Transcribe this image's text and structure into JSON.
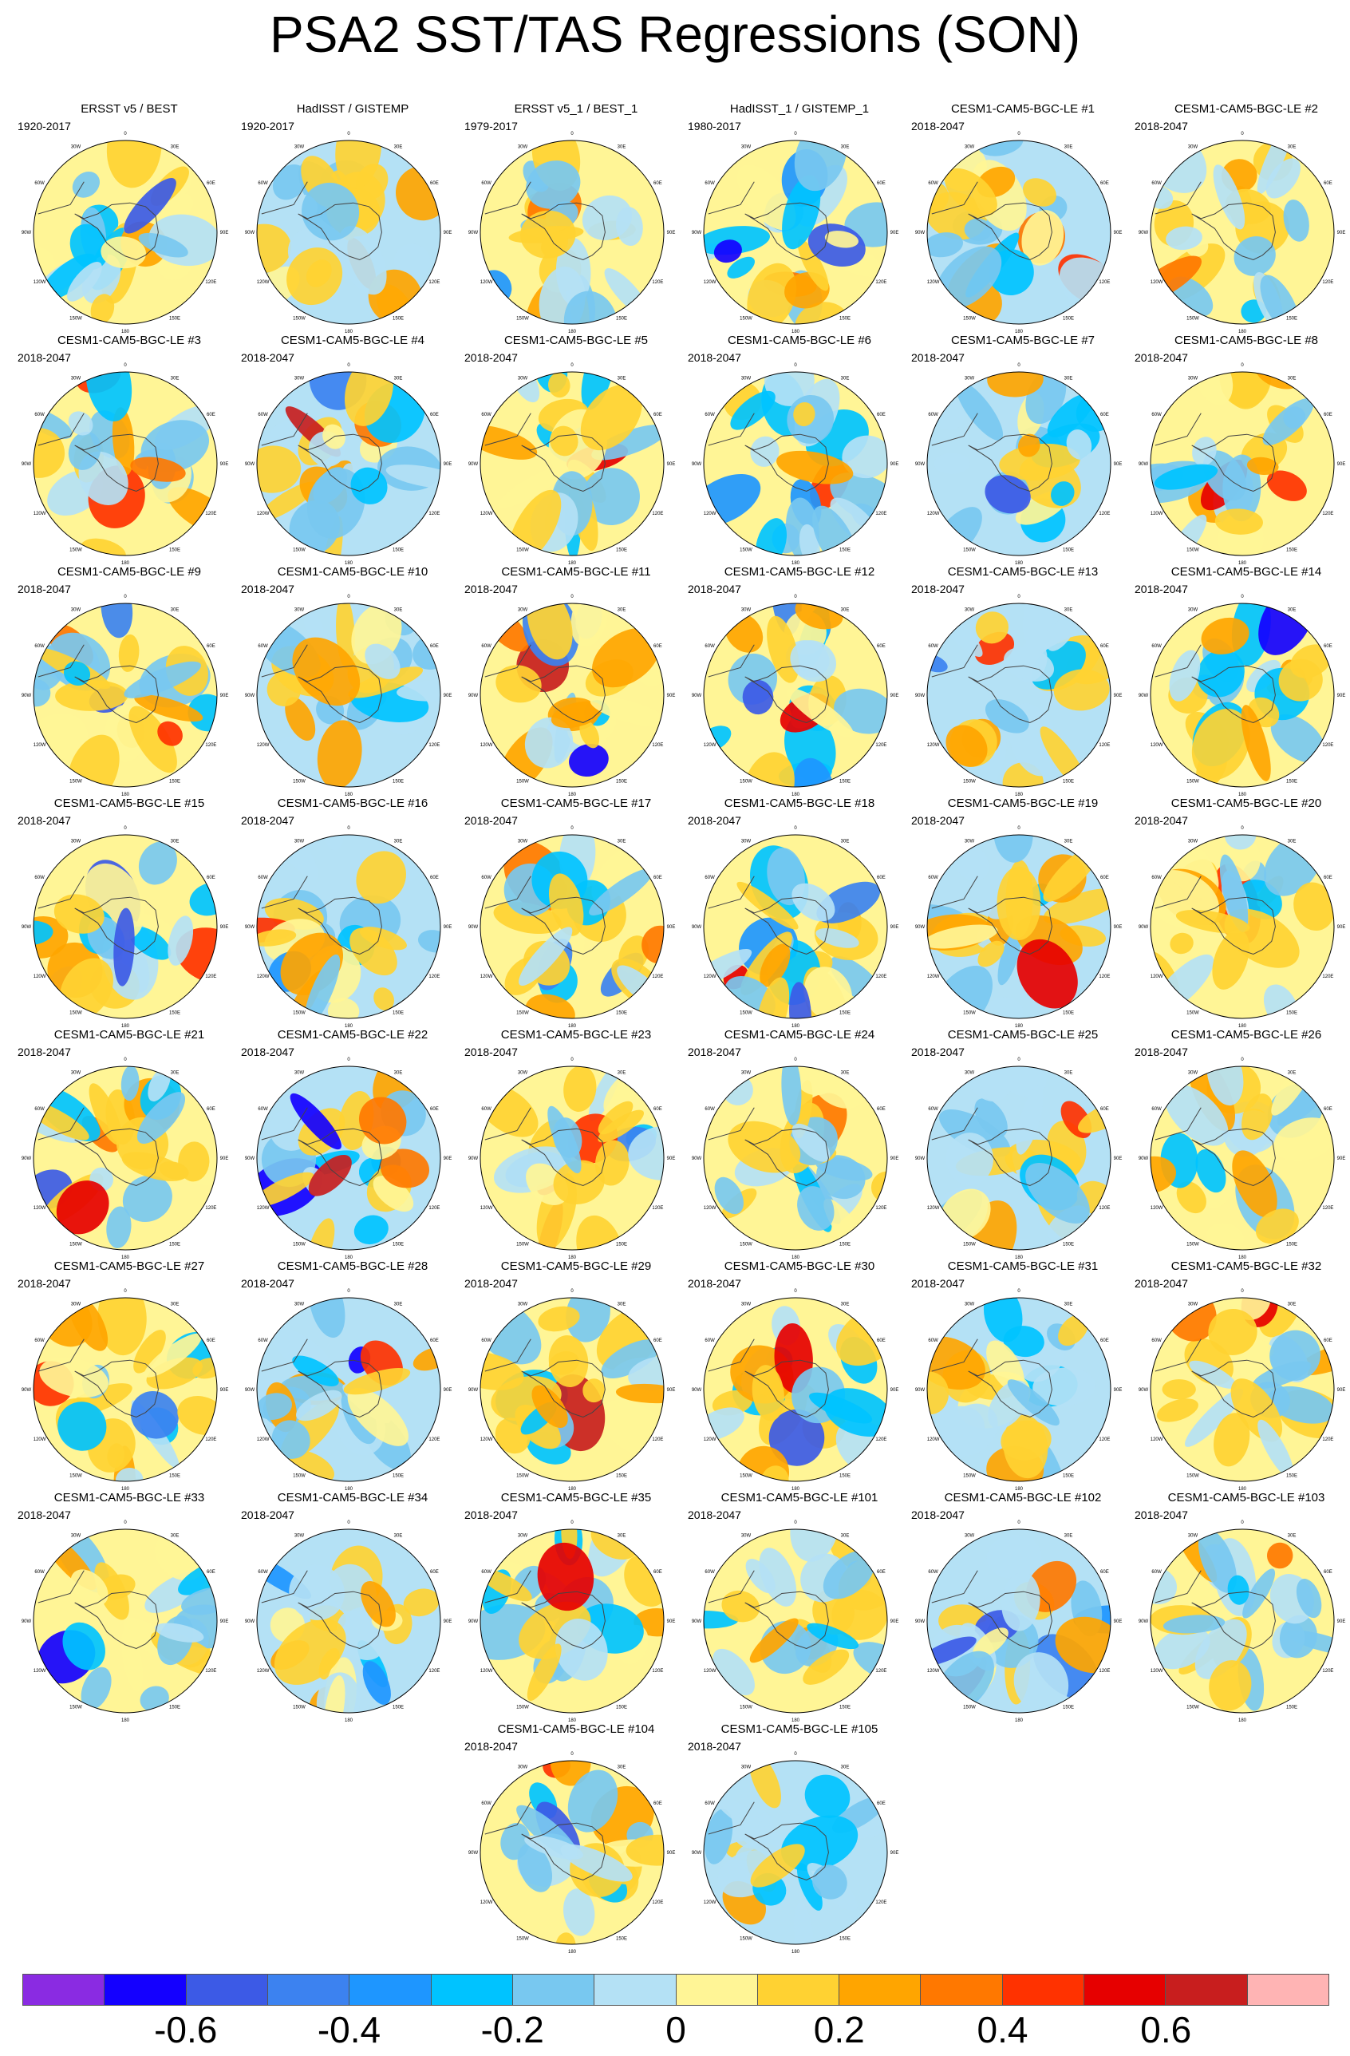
{
  "title": "PSA2 SST/TAS Regressions (SON)",
  "map_ticks": [
    "0",
    "30E",
    "60E",
    "90E",
    "120E",
    "150E",
    "180",
    "150W",
    "120W",
    "90W",
    "60W",
    "30W"
  ],
  "panels": [
    {
      "title": "ERSST v5 / BEST",
      "period": "1920-2017"
    },
    {
      "title": "HadISST / GISTEMP",
      "period": "1920-2017"
    },
    {
      "title": "ERSST v5_1 / BEST_1",
      "period": "1979-2017"
    },
    {
      "title": "HadISST_1 / GISTEMP_1",
      "period": "1980-2017"
    },
    {
      "title": "CESM1-CAM5-BGC-LE #1",
      "period": "2018-2047"
    },
    {
      "title": "CESM1-CAM5-BGC-LE #2",
      "period": "2018-2047"
    },
    {
      "title": "CESM1-CAM5-BGC-LE #3",
      "period": "2018-2047"
    },
    {
      "title": "CESM1-CAM5-BGC-LE #4",
      "period": "2018-2047"
    },
    {
      "title": "CESM1-CAM5-BGC-LE #5",
      "period": "2018-2047"
    },
    {
      "title": "CESM1-CAM5-BGC-LE #6",
      "period": "2018-2047"
    },
    {
      "title": "CESM1-CAM5-BGC-LE #7",
      "period": "2018-2047"
    },
    {
      "title": "CESM1-CAM5-BGC-LE #8",
      "period": "2018-2047"
    },
    {
      "title": "CESM1-CAM5-BGC-LE #9",
      "period": "2018-2047"
    },
    {
      "title": "CESM1-CAM5-BGC-LE #10",
      "period": "2018-2047"
    },
    {
      "title": "CESM1-CAM5-BGC-LE #11",
      "period": "2018-2047"
    },
    {
      "title": "CESM1-CAM5-BGC-LE #12",
      "period": "2018-2047"
    },
    {
      "title": "CESM1-CAM5-BGC-LE #13",
      "period": "2018-2047"
    },
    {
      "title": "CESM1-CAM5-BGC-LE #14",
      "period": "2018-2047"
    },
    {
      "title": "CESM1-CAM5-BGC-LE #15",
      "period": "2018-2047"
    },
    {
      "title": "CESM1-CAM5-BGC-LE #16",
      "period": "2018-2047"
    },
    {
      "title": "CESM1-CAM5-BGC-LE #17",
      "period": "2018-2047"
    },
    {
      "title": "CESM1-CAM5-BGC-LE #18",
      "period": "2018-2047"
    },
    {
      "title": "CESM1-CAM5-BGC-LE #19",
      "period": "2018-2047"
    },
    {
      "title": "CESM1-CAM5-BGC-LE #20",
      "period": "2018-2047"
    },
    {
      "title": "CESM1-CAM5-BGC-LE #21",
      "period": "2018-2047"
    },
    {
      "title": "CESM1-CAM5-BGC-LE #22",
      "period": "2018-2047"
    },
    {
      "title": "CESM1-CAM5-BGC-LE #23",
      "period": "2018-2047"
    },
    {
      "title": "CESM1-CAM5-BGC-LE #24",
      "period": "2018-2047"
    },
    {
      "title": "CESM1-CAM5-BGC-LE #25",
      "period": "2018-2047"
    },
    {
      "title": "CESM1-CAM5-BGC-LE #26",
      "period": "2018-2047"
    },
    {
      "title": "CESM1-CAM5-BGC-LE #27",
      "period": "2018-2047"
    },
    {
      "title": "CESM1-CAM5-BGC-LE #28",
      "period": "2018-2047"
    },
    {
      "title": "CESM1-CAM5-BGC-LE #29",
      "period": "2018-2047"
    },
    {
      "title": "CESM1-CAM5-BGC-LE #30",
      "period": "2018-2047"
    },
    {
      "title": "CESM1-CAM5-BGC-LE #31",
      "period": "2018-2047"
    },
    {
      "title": "CESM1-CAM5-BGC-LE #32",
      "period": "2018-2047"
    },
    {
      "title": "CESM1-CAM5-BGC-LE #33",
      "period": "2018-2047"
    },
    {
      "title": "CESM1-CAM5-BGC-LE #34",
      "period": "2018-2047"
    },
    {
      "title": "CESM1-CAM5-BGC-LE #35",
      "period": "2018-2047"
    },
    {
      "title": "CESM1-CAM5-BGC-LE #101",
      "period": "2018-2047"
    },
    {
      "title": "CESM1-CAM5-BGC-LE #102",
      "period": "2018-2047"
    },
    {
      "title": "CESM1-CAM5-BGC-LE #103",
      "period": "2018-2047"
    },
    {
      "title": "CESM1-CAM5-BGC-LE #104",
      "period": "2018-2047"
    },
    {
      "title": "CESM1-CAM5-BGC-LE #105",
      "period": "2018-2047"
    }
  ],
  "colorbar": {
    "colors": [
      "#8a2be2",
      "#1400ff",
      "#3c5ae6",
      "#3c82f0",
      "#1e96ff",
      "#00c3ff",
      "#78c8f0",
      "#b4e1f5",
      "#fff596",
      "#ffd232",
      "#ffa500",
      "#ff7800",
      "#ff3200",
      "#e60000",
      "#c81e1e",
      "#ffb4b4"
    ],
    "labels": [
      "-0.6",
      "-0.4",
      "-0.2",
      "0",
      "0.2",
      "0.4",
      "0.6"
    ]
  }
}
